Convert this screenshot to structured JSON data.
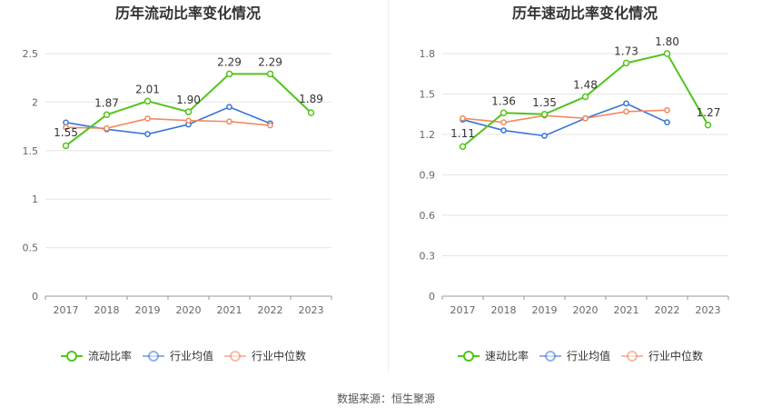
{
  "footer": {
    "source_label": "数据来源：恒生聚源"
  },
  "chart_data": [
    {
      "type": "line",
      "title": "历年流动比率变化情况",
      "categories": [
        "2017",
        "2018",
        "2019",
        "2020",
        "2021",
        "2022",
        "2023"
      ],
      "ylim": [
        0,
        2.5
      ],
      "yticks": [
        "0",
        "0.5",
        "1",
        "1.5",
        "2",
        "2.5"
      ],
      "grid": true,
      "legend_position": "bottom",
      "series": [
        {
          "name": "流动比率",
          "color": "#52c41a",
          "values": [
            1.55,
            1.87,
            2.01,
            1.9,
            2.29,
            2.29,
            1.89
          ],
          "labels": [
            "1.55",
            "1.87",
            "2.01",
            "1.90",
            "2.29",
            "2.29",
            "1.89"
          ],
          "emphasis": true
        },
        {
          "name": "行业均值",
          "color": "#3a74d9",
          "values": [
            1.79,
            1.72,
            1.67,
            1.77,
            1.95,
            1.78,
            null
          ]
        },
        {
          "name": "行业中位数",
          "color": "#f08a5d",
          "values": [
            1.74,
            1.73,
            1.83,
            1.81,
            1.8,
            1.76,
            null
          ]
        }
      ]
    },
    {
      "type": "line",
      "title": "历年速动比率变化情况",
      "categories": [
        "2017",
        "2018",
        "2019",
        "2020",
        "2021",
        "2022",
        "2023"
      ],
      "ylim": [
        0,
        1.8
      ],
      "yticks": [
        "0",
        "0.3",
        "0.6",
        "0.9",
        "1.2",
        "1.5",
        "1.8"
      ],
      "grid": true,
      "legend_position": "bottom",
      "series": [
        {
          "name": "速动比率",
          "color": "#52c41a",
          "values": [
            1.11,
            1.36,
            1.35,
            1.48,
            1.73,
            1.8,
            1.27
          ],
          "labels": [
            "1.11",
            "1.36",
            "1.35",
            "1.48",
            "1.73",
            "1.80",
            "1.27"
          ],
          "emphasis": true
        },
        {
          "name": "行业均值",
          "color": "#3a74d9",
          "values": [
            1.31,
            1.23,
            1.19,
            1.32,
            1.43,
            1.29,
            null
          ]
        },
        {
          "name": "行业中位数",
          "color": "#f08a5d",
          "values": [
            1.32,
            1.29,
            1.34,
            1.32,
            1.37,
            1.38,
            null
          ]
        }
      ]
    }
  ]
}
